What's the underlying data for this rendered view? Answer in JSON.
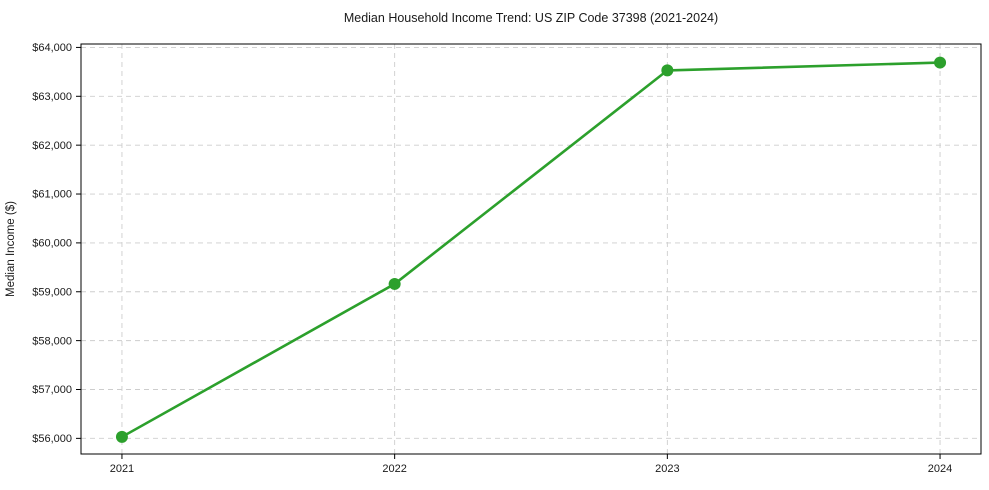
{
  "chart_data": {
    "type": "line",
    "title": "Median Household Income Trend: US ZIP Code 37398 (2021-2024)",
    "xlabel": "",
    "ylabel": "Median Income ($)",
    "categories": [
      "2021",
      "2022",
      "2023",
      "2024"
    ],
    "values": [
      56030,
      59160,
      63530,
      63690
    ],
    "ylim": [
      55680,
      64070
    ],
    "yticks": [
      56000,
      57000,
      58000,
      59000,
      60000,
      61000,
      62000,
      63000,
      64000
    ],
    "ytick_labels": [
      "$56,000",
      "$57,000",
      "$58,000",
      "$59,000",
      "$60,000",
      "$61,000",
      "$62,000",
      "$63,000",
      "$64,000"
    ],
    "grid": true,
    "grid_axes": "both",
    "grid_style": "dashed",
    "grid_color": "#cdcdcd",
    "line_color": "#2ca02c",
    "marker": "circle",
    "marker_color": "#2ca02c",
    "legend": "none",
    "spine_color": "#000000",
    "text_color": "#1a1a1a"
  }
}
